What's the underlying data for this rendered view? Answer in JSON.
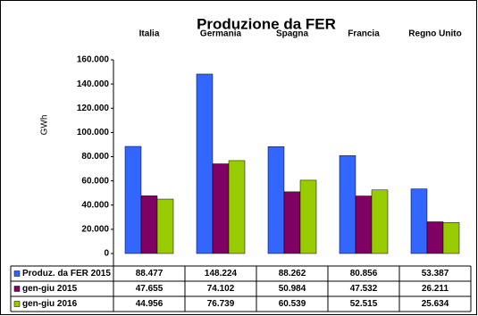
{
  "chart_data": {
    "type": "bar",
    "title": "Produzione da FER",
    "y_label": "GWh",
    "categories": [
      "Italia",
      "Germania",
      "Spagna",
      "Francia",
      "Regno Unito"
    ],
    "series": [
      {
        "name": "Produz. da FER 2015",
        "color": "#3366ff",
        "values": [
          88477,
          148224,
          88262,
          80856,
          53387
        ],
        "value_labels": [
          "88.477",
          "148.224",
          "88.262",
          "80.856",
          "53.387"
        ]
      },
      {
        "name": "gen-giu 2015",
        "color": "#800066",
        "values": [
          47655,
          74102,
          50984,
          47532,
          26211
        ],
        "value_labels": [
          "47.655",
          "74.102",
          "50.984",
          "47.532",
          "26.211"
        ]
      },
      {
        "name": "gen-giu 2016",
        "color": "#99cc00",
        "values": [
          44956,
          76739,
          60539,
          52515,
          25634
        ],
        "value_labels": [
          "44.956",
          "76.739",
          "60.539",
          "52.515",
          "25.634"
        ]
      }
    ],
    "ylim": [
      0,
      160000
    ],
    "yticks": [
      0,
      {
        "value": 20000,
        "label": "20.000"
      },
      {
        "value": 40000,
        "label": "40.000"
      },
      {
        "value": 60000,
        "label": "60.000"
      },
      {
        "value": 80000,
        "label": "80.000"
      },
      {
        "value": 100000,
        "label": "100.000"
      },
      {
        "value": 120000,
        "label": "120.000"
      },
      {
        "value": 140000,
        "label": "140.000"
      },
      {
        "value": 160000,
        "label": "160.000"
      }
    ],
    "grid": false
  }
}
